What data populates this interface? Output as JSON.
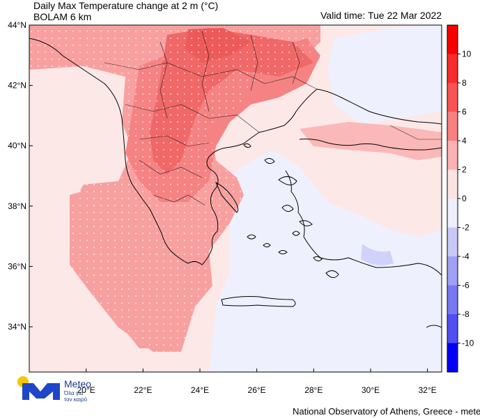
{
  "header": {
    "title": "Daily Max Temperature change at 2 m (°C)",
    "subtitle": "BOLAM 6 km",
    "valid_time": "Valid time: Tue 22 Mar 2022"
  },
  "footer": {
    "credit": "National Observatory of Athens, Greece - meteo.gr"
  },
  "logo": {
    "name": "Meteo",
    "tagline": "Όλα για τον καιρό"
  },
  "map": {
    "lon_range": [
      18,
      32.5
    ],
    "lat_range": [
      32.5,
      44
    ],
    "lon_ticks": [
      {
        "value": 20,
        "label": "20°E"
      },
      {
        "value": 22,
        "label": "22°E"
      },
      {
        "value": 24,
        "label": "24°E"
      },
      {
        "value": 26,
        "label": "26°E"
      },
      {
        "value": 28,
        "label": "28°E"
      },
      {
        "value": 30,
        "label": "30°E"
      },
      {
        "value": 32,
        "label": "32°E"
      }
    ],
    "lat_ticks": [
      {
        "value": 34,
        "label": "34°N"
      },
      {
        "value": 36,
        "label": "36°N"
      },
      {
        "value": 38,
        "label": "38°N"
      },
      {
        "value": 40,
        "label": "40°N"
      },
      {
        "value": 42,
        "label": "42°N"
      },
      {
        "value": 44,
        "label": "44°N"
      }
    ]
  },
  "colorbar": {
    "labels": [
      "10",
      "8",
      "6",
      "4",
      "2",
      "0",
      "-2",
      "-4",
      "-6",
      "-8",
      "-10"
    ],
    "colors": [
      "#f80000",
      "#f82d2d",
      "#f85454",
      "#f88080",
      "#fbb2b2",
      "#fde2e2",
      "#eeeefd",
      "#c8c8f8",
      "#a0a0f5",
      "#7878f3",
      "#5050f2",
      "#0000f8"
    ]
  }
}
